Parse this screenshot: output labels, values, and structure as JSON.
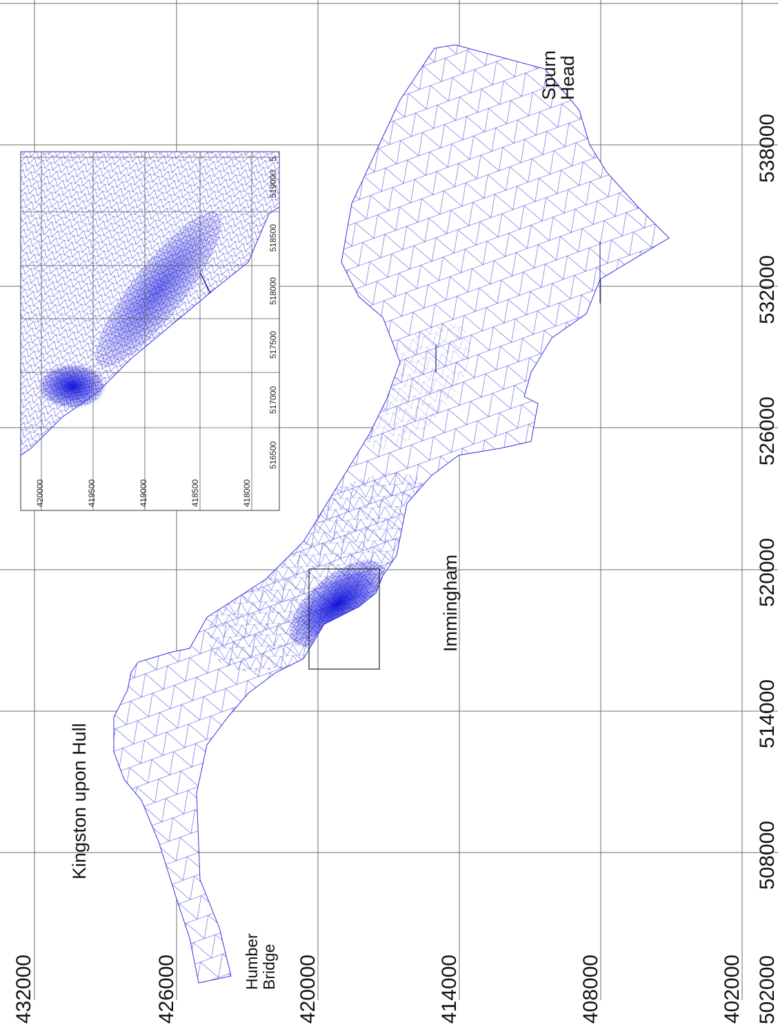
{
  "map": {
    "axis_labels": {
      "eastings": [
        "502000",
        "508000",
        "514000",
        "520000",
        "526000",
        "532000",
        "538000"
      ],
      "northings": [
        "432000",
        "426000",
        "420000",
        "414000",
        "408000",
        "402000"
      ]
    },
    "place_labels": {
      "kingston": "Kingston upon Hull",
      "humber_line1": "Humber",
      "humber_line2": "Bridge",
      "immingham": "Immingham",
      "spurn_line1": "Spurn",
      "spurn_line2": "Head"
    },
    "inset": {
      "eastings": [
        "516500",
        "517000",
        "517500",
        "518000",
        "518500",
        "519000",
        "5"
      ],
      "northings": [
        "420000",
        "419500",
        "419000",
        "418500",
        "418000"
      ]
    },
    "colors": {
      "mesh": "#2f2fe0",
      "mesh_dense": "#1515dd",
      "grid": "#6b6b6b",
      "background": "#ffffff"
    }
  }
}
